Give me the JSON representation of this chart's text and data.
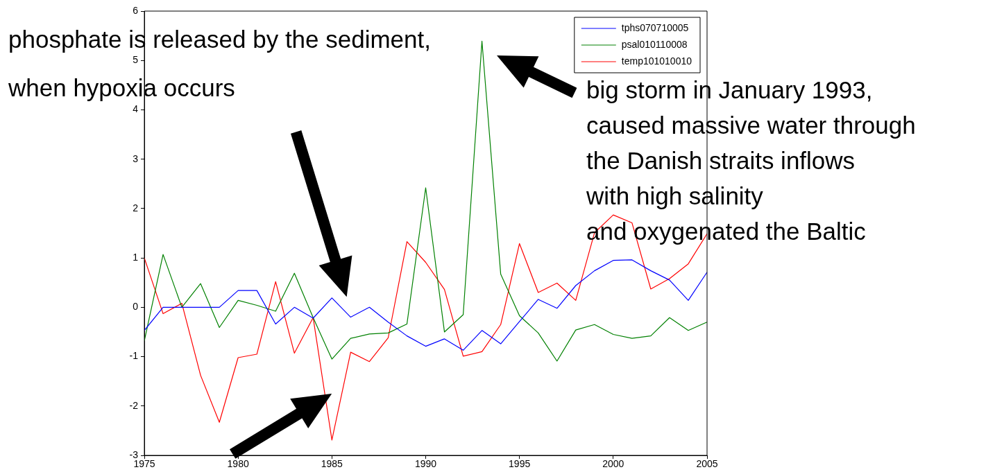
{
  "chart_data": {
    "type": "line",
    "x": [
      1975,
      1976,
      1977,
      1978,
      1979,
      1980,
      1981,
      1982,
      1983,
      1984,
      1985,
      1986,
      1987,
      1988,
      1989,
      1990,
      1991,
      1992,
      1993,
      1994,
      1995,
      1996,
      1997,
      1998,
      1999,
      2000,
      2001,
      2002,
      2003,
      2004,
      2005
    ],
    "series": [
      {
        "name": "tphs070710005",
        "color": "#0000ff",
        "values": [
          -0.47,
          0,
          0,
          0,
          0,
          0.34,
          0.34,
          -0.34,
          0,
          -0.22,
          0.19,
          -0.2,
          0,
          -0.3,
          -0.58,
          -0.79,
          -0.64,
          -0.87,
          -0.47,
          -0.74,
          -0.29,
          0.16,
          -0.02,
          0.44,
          0.74,
          0.95,
          0.96,
          0.74,
          0.55,
          0.14,
          0.71
        ]
      },
      {
        "name": "psal010110008",
        "color": "#008000",
        "values": [
          -0.68,
          1.07,
          0,
          0.48,
          -0.41,
          0.14,
          0.04,
          -0.08,
          0.69,
          -0.21,
          -1.05,
          -0.63,
          -0.54,
          -0.52,
          -0.34,
          2.42,
          -0.5,
          -0.15,
          5.39,
          0.67,
          -0.17,
          -0.52,
          -1.09,
          -0.46,
          -0.35,
          -0.55,
          -0.63,
          -0.58,
          -0.21,
          -0.47,
          -0.3
        ]
      },
      {
        "name": "temp101010010",
        "color": "#ff0000",
        "values": [
          1.0,
          -0.13,
          0.08,
          -1.38,
          -2.33,
          -1.02,
          -0.95,
          0.52,
          -0.93,
          -0.21,
          -2.69,
          -0.91,
          -1.1,
          -0.62,
          1.33,
          0.91,
          0.36,
          -0.99,
          -0.9,
          -0.35,
          1.29,
          0.3,
          0.49,
          0.14,
          1.51,
          1.87,
          1.71,
          0.37,
          0.58,
          0.88,
          1.49
        ]
      }
    ],
    "xlim": [
      1975,
      2005
    ],
    "xticks": [
      1975,
      1980,
      1985,
      1990,
      1995,
      2000,
      2005
    ],
    "ylim": [
      -3,
      6
    ],
    "yticks": [
      -3,
      -2,
      -1,
      0,
      1,
      2,
      3,
      4,
      5,
      6
    ],
    "grid": false,
    "legend": "top right",
    "marker": "none",
    "line_style": "solid",
    "annotations": [
      "phosphate is released by the sediment,\nwhen hypoxia occurs",
      "big storm in January 1993,\ncaused massive water through\nthe Danish straits inflows\nwith high salinity\nand oxygenated the Baltic"
    ]
  }
}
